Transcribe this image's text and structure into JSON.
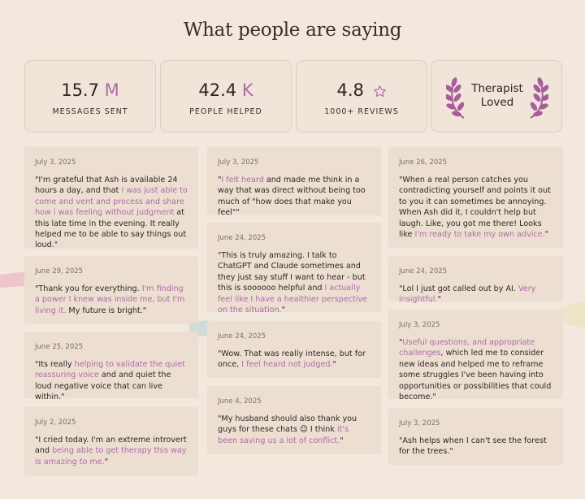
{
  "page": {
    "title": "What people are saying"
  },
  "colors": {
    "background": "#f3e8dd",
    "card": "#ecdfd2",
    "accent": "#b06aa6",
    "text": "#2f2622"
  },
  "stats": [
    {
      "value": "15.7",
      "unit": "M",
      "label": "MESSAGES SENT"
    },
    {
      "value": "42.4",
      "unit": "K",
      "label": "PEOPLE HELPED"
    },
    {
      "value": "4.8",
      "icon": "star-outline-icon",
      "label": "1000+ REVIEWS"
    }
  ],
  "badge": {
    "line1": "Therapist",
    "line2": "Loved",
    "icon": "laurel-wreath-icon"
  },
  "testimonials": {
    "col1": [
      {
        "date": "July 3, 2025",
        "parts": [
          {
            "t": "\"I'm grateful that Ash is available 24 hours a day, and that "
          },
          {
            "t": "I was just able to come and vent and process and share how i was feeling without judgment",
            "h": true
          },
          {
            "t": " at this late time in the evening. It really helped me to be able to say things out loud.\""
          }
        ]
      },
      {
        "date": "June 29, 2025",
        "parts": [
          {
            "t": "\"Thank you for everything. "
          },
          {
            "t": "I'm finding a power I knew was inside me, but I'm living it.",
            "h": true
          },
          {
            "t": " My future is bright.\""
          }
        ]
      },
      {
        "date": "June 25, 2025",
        "parts": [
          {
            "t": "\"Its really "
          },
          {
            "t": "helping to validate the quiet reassuring voice",
            "h": true
          },
          {
            "t": " and and quiet the loud negative voice that can live within.\""
          }
        ]
      },
      {
        "date": "July 2, 2025",
        "parts": [
          {
            "t": "\"I cried today. I'm an extreme introvert and "
          },
          {
            "t": "being able to get therapy this way is amazing to me.",
            "h": true
          },
          {
            "t": "\""
          }
        ]
      }
    ],
    "col2": [
      {
        "date": "July 3, 2025",
        "parts": [
          {
            "t": "\""
          },
          {
            "t": "I felt heard",
            "h": true
          },
          {
            "t": " and made me think in a way that was direct without being too much of \"how does that make you feel\"\""
          }
        ]
      },
      {
        "date": "June 24, 2025",
        "parts": [
          {
            "t": "\"This is truly amazing. I talk to ChatGPT and Claude sometimes and they just say stuff I want to hear - but this is soooooo helpful and "
          },
          {
            "t": "I actually feel like I have a healthier perspective on the situation.",
            "h": true
          },
          {
            "t": "\""
          }
        ]
      },
      {
        "date": "June 24, 2025",
        "parts": [
          {
            "t": "\"Wow. That was really intense, but for once, "
          },
          {
            "t": "I feel heard not judged.",
            "h": true
          },
          {
            "t": "\""
          }
        ]
      },
      {
        "date": "June 4, 2025",
        "parts": [
          {
            "t": "\"My husband should also thank you guys for these chats 😉 I think "
          },
          {
            "t": "it's been saving us a lot of conflict.",
            "h": true
          },
          {
            "t": "\""
          }
        ]
      }
    ],
    "col3": [
      {
        "date": "June 26, 2025",
        "parts": [
          {
            "t": "\"When a real person catches you contradicting yourself and points it out to you it can sometimes be annoying. When Ash did it, I couldn't help but laugh. Like, you got me there! Looks like "
          },
          {
            "t": "I'm ready to take my own advice.",
            "h": true
          },
          {
            "t": "\""
          }
        ]
      },
      {
        "date": "June 24, 2025",
        "parts": [
          {
            "t": "\"Lol I just got called out by AI. "
          },
          {
            "t": "Very insightful.",
            "h": true
          },
          {
            "t": "\""
          }
        ]
      },
      {
        "date": "July 3, 2025",
        "parts": [
          {
            "t": "\""
          },
          {
            "t": "Useful questions, and appropriate challenges",
            "h": true
          },
          {
            "t": ", which led me to consider new ideas and helped me to reframe some struggles I've been having into opportunities or possibilities that could become.\""
          }
        ]
      },
      {
        "date": "July 3, 2025",
        "parts": [
          {
            "t": "\"Ash helps when I can't see the forest for the trees.\""
          }
        ]
      }
    ]
  }
}
